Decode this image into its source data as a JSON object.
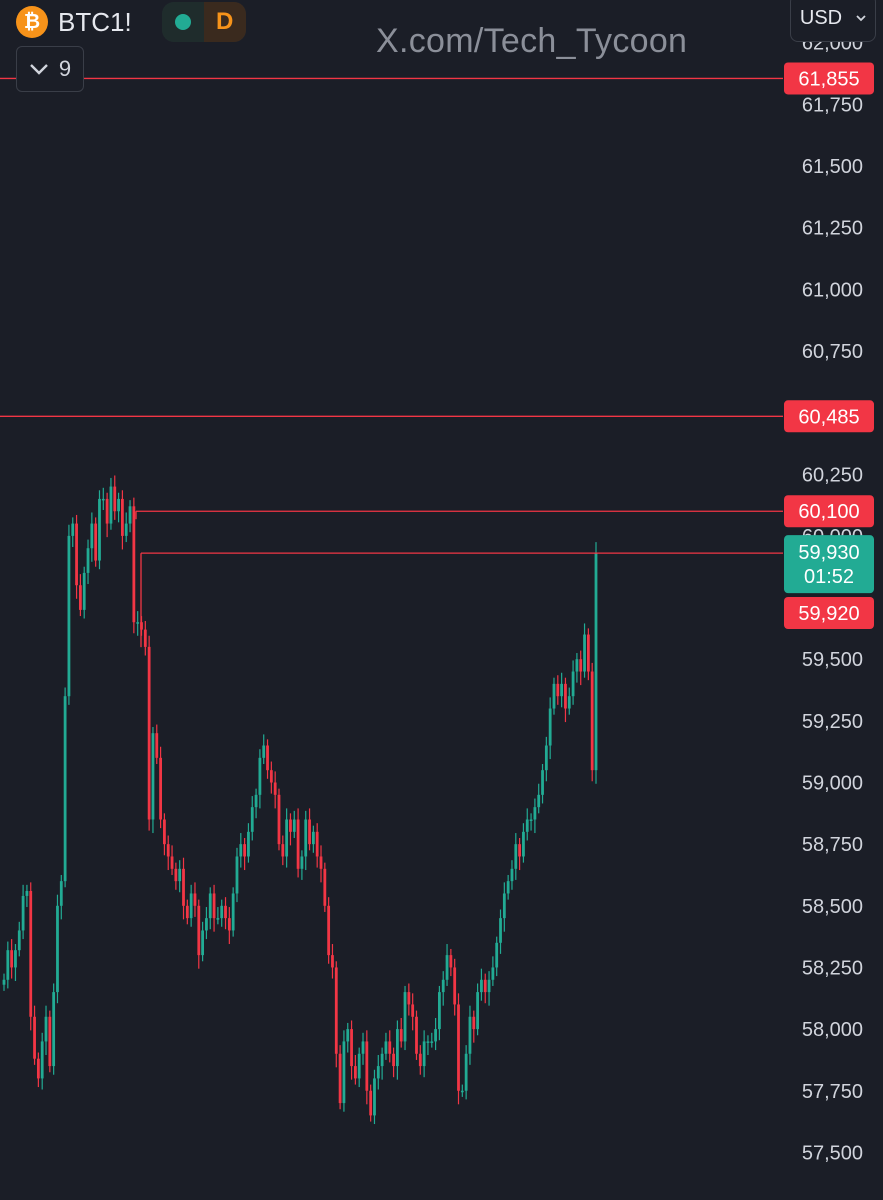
{
  "header": {
    "symbol": "BTC1!",
    "coin_icon_glyph": "₿",
    "coin_icon": "bitcoin-icon",
    "status_dot_color": "#22ab94",
    "interval": "D",
    "collapse_count": "9",
    "currency": "USD",
    "watermark": "X.com/Tech_Tycoon"
  },
  "colors": {
    "up": "#22ab94",
    "down": "#f23645",
    "background": "#1b1e27",
    "axis_text": "#d1d4dc"
  },
  "chart_data": {
    "type": "candlestick",
    "y_axis": {
      "ticks": [
        {
          "label": "62,000",
          "value": 62000
        },
        {
          "label": "61,750",
          "value": 61750
        },
        {
          "label": "61,500",
          "value": 61500
        },
        {
          "label": "61,250",
          "value": 61250
        },
        {
          "label": "61,000",
          "value": 61000
        },
        {
          "label": "60,750",
          "value": 60750
        },
        {
          "label": "60,250",
          "value": 60250
        },
        {
          "label": "60,000",
          "value": 60000
        },
        {
          "label": "59,500",
          "value": 59500
        },
        {
          "label": "59,250",
          "value": 59250
        },
        {
          "label": "59,000",
          "value": 59000
        },
        {
          "label": "58,750",
          "value": 58750
        },
        {
          "label": "58,500",
          "value": 58500
        },
        {
          "label": "58,250",
          "value": 58250
        },
        {
          "label": "58,000",
          "value": 58000
        },
        {
          "label": "57,750",
          "value": 57750
        },
        {
          "label": "57,500",
          "value": 57500
        }
      ]
    },
    "price_lines": [
      {
        "value": 61855,
        "label": "61,855"
      },
      {
        "value": 60485,
        "label": "60,485"
      },
      {
        "value": 60100,
        "label": "60,100"
      },
      {
        "value": 59930,
        "label": "59,930"
      }
    ],
    "last_price": {
      "label": "59,930",
      "countdown": "01:52",
      "value": 59930
    },
    "low_label": {
      "label": "59,920",
      "value": 59920
    },
    "closes": [
      58200,
      58320,
      58250,
      58320,
      58400,
      58540,
      58560,
      58050,
      57880,
      57800,
      57950,
      58050,
      57850,
      58150,
      58500,
      58600,
      59350,
      60000,
      60050,
      59800,
      59700,
      59850,
      59950,
      60050,
      59900,
      60150,
      60150,
      60050,
      60200,
      60100,
      60150,
      60000,
      60050,
      60120,
      59650,
      59650,
      59620,
      59550,
      58850,
      59200,
      59100,
      58850,
      58750,
      58700,
      58650,
      58600,
      58650,
      58500,
      58450,
      58550,
      58500,
      58300,
      58400,
      58450,
      58550,
      58450,
      58450,
      58500,
      58450,
      58400,
      58550,
      58700,
      58750,
      58700,
      58800,
      58900,
      58950,
      59100,
      59150,
      59050,
      59000,
      58950,
      58750,
      58700,
      58850,
      58800,
      58850,
      58650,
      58700,
      58850,
      58750,
      58800,
      58700,
      58650,
      58500,
      58300,
      58250,
      57900,
      57700,
      57950,
      58000,
      57850,
      57800,
      57900,
      57950,
      57750,
      57650,
      57800,
      57850,
      57900,
      57950,
      57900,
      57850,
      58000,
      57950,
      58150,
      58100,
      58050,
      57900,
      57850,
      57950,
      57950,
      57950,
      58000,
      58150,
      58200,
      58300,
      58250,
      58100,
      57750,
      57750,
      57900,
      58050,
      58000,
      58150,
      58200,
      58150,
      58200,
      58250,
      58350,
      58450,
      58550,
      58600,
      58650,
      58750,
      58700,
      58800,
      58850,
      58850,
      58900,
      58950,
      59050,
      59150,
      59300,
      59400,
      59350,
      59400,
      59300,
      59350,
      59450,
      59500,
      59450,
      59600,
      59450,
      59050,
      59930
    ]
  }
}
